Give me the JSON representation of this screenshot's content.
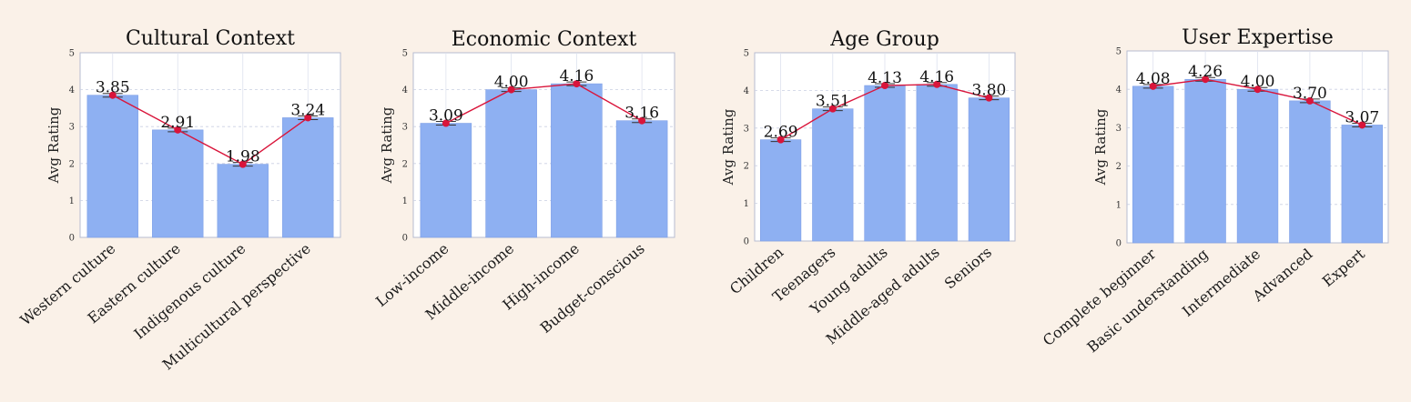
{
  "chart_data": [
    {
      "type": "bar",
      "title": "Cultural Context",
      "ylabel": "Avg Rating",
      "ylim": [
        0,
        5
      ],
      "yticks": [
        0,
        1,
        2,
        3,
        4,
        5
      ],
      "categories": [
        "Western culture",
        "Eastern culture",
        "Indigenous culture",
        "Multicultural perspective"
      ],
      "values": [
        3.85,
        2.91,
        1.98,
        3.24
      ],
      "value_labels": [
        "3.85",
        "2.91",
        "1.98",
        "3.24"
      ],
      "overlay": "line",
      "grid": true,
      "colors": {
        "bar": "#8eb0f2",
        "line": "#d9153b"
      }
    },
    {
      "type": "bar",
      "title": "Economic Context",
      "ylabel": "Avg Rating",
      "ylim": [
        0,
        5
      ],
      "yticks": [
        0,
        1,
        2,
        3,
        4,
        5
      ],
      "categories": [
        "Low-income",
        "Middle-income",
        "High-income",
        "Budget-conscious"
      ],
      "values": [
        3.09,
        4.0,
        4.16,
        3.16
      ],
      "value_labels": [
        "3.09",
        "4.00",
        "4.16",
        "3.16"
      ],
      "overlay": "line",
      "grid": true,
      "colors": {
        "bar": "#8eb0f2",
        "line": "#d9153b"
      }
    },
    {
      "type": "bar",
      "title": "Age Group",
      "ylabel": "Avg Rating",
      "ylim": [
        0,
        5
      ],
      "yticks": [
        0,
        1,
        2,
        3,
        4,
        5
      ],
      "categories": [
        "Children",
        "Teenagers",
        "Young adults",
        "Middle-aged adults",
        "Seniors"
      ],
      "values": [
        2.69,
        3.51,
        4.13,
        4.16,
        3.8
      ],
      "value_labels": [
        "2.69",
        "3.51",
        "4.13",
        "4.16",
        "3.80"
      ],
      "overlay": "line",
      "grid": true,
      "colors": {
        "bar": "#8eb0f2",
        "line": "#d9153b"
      }
    },
    {
      "type": "bar",
      "title": "User Expertise",
      "ylabel": "Avg Rating",
      "ylim": [
        0,
        5
      ],
      "yticks": [
        0,
        1,
        2,
        3,
        4,
        5
      ],
      "categories": [
        "Complete beginner",
        "Basic understanding",
        "Intermediate",
        "Advanced",
        "Expert"
      ],
      "values": [
        4.08,
        4.26,
        4.0,
        3.7,
        3.07
      ],
      "value_labels": [
        "4.08",
        "4.26",
        "4.00",
        "3.70",
        "3.07"
      ],
      "overlay": "line",
      "grid": true,
      "colors": {
        "bar": "#8eb0f2",
        "line": "#d9153b"
      }
    }
  ]
}
